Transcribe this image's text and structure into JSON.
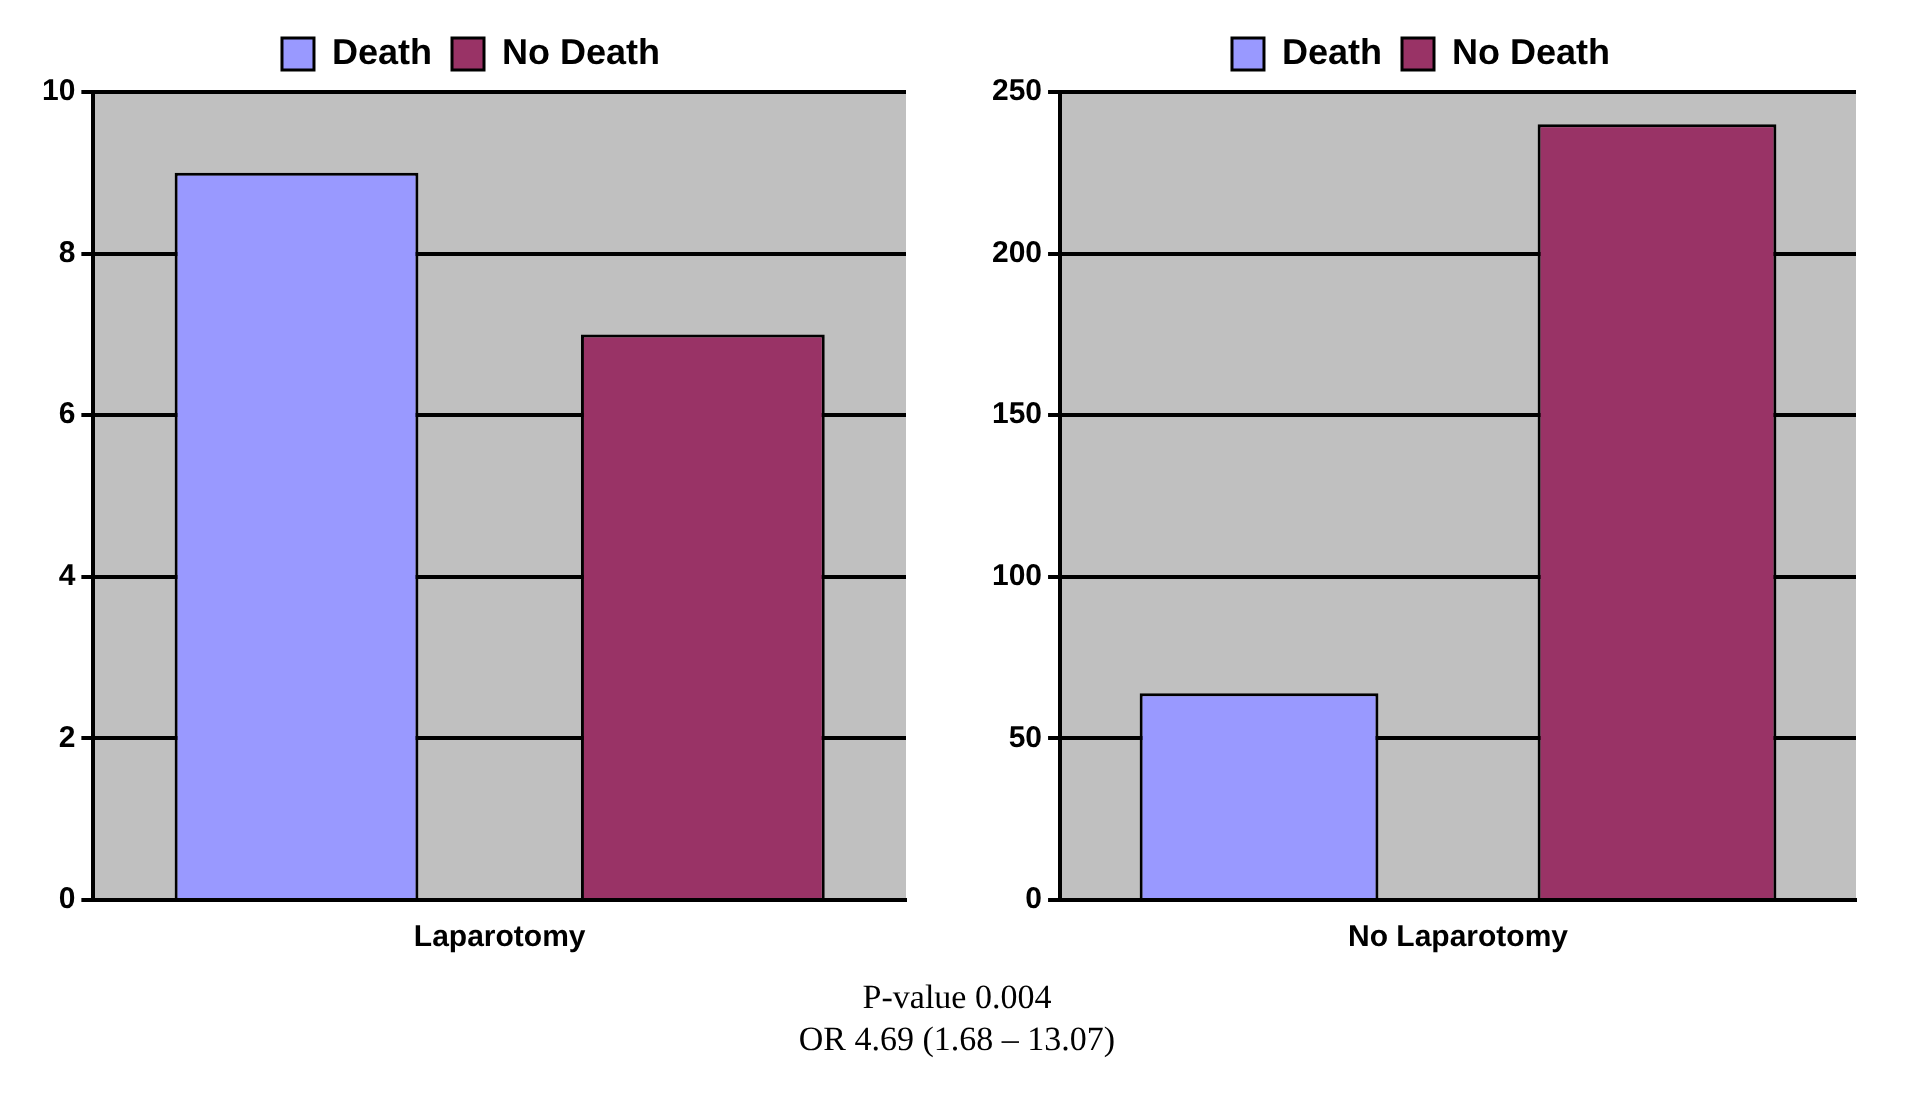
{
  "chart_data": [
    {
      "type": "bar",
      "categories": [
        "Laparotomy"
      ],
      "series": [
        {
          "name": "Death",
          "color": "#9999ff",
          "values": [
            9
          ]
        },
        {
          "name": "No Death",
          "color": "#993366",
          "values": [
            7
          ]
        }
      ],
      "ylim": [
        0,
        10
      ],
      "yticks": [
        0,
        2,
        4,
        6,
        8,
        10
      ],
      "grid": "y",
      "legend": "top"
    },
    {
      "type": "bar",
      "categories": [
        "No Laparotomy"
      ],
      "series": [
        {
          "name": "Death",
          "color": "#9999ff",
          "values": [
            64
          ]
        },
        {
          "name": "No Death",
          "color": "#993366",
          "values": [
            240
          ]
        }
      ],
      "ylim": [
        0,
        250
      ],
      "yticks": [
        0,
        50,
        100,
        150,
        200,
        250
      ],
      "grid": "y",
      "legend": "top",
      "annotations": [
        "P-value 0.004",
        "OR 4.69 (1.68 – 13.07)"
      ]
    }
  ]
}
